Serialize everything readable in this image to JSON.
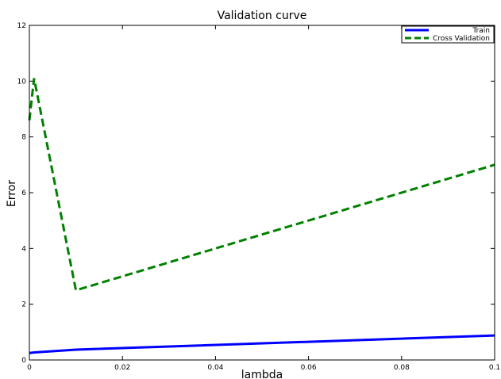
{
  "chart_data": {
    "type": "line",
    "title": "Validation curve",
    "xlabel": "lambda",
    "ylabel": "Error",
    "xlim": [
      0,
      0.1
    ],
    "ylim": [
      0,
      12
    ],
    "xticks": [
      {
        "value": 0,
        "label": "0"
      },
      {
        "value": 0.02,
        "label": "0.02"
      },
      {
        "value": 0.04,
        "label": "0.04"
      },
      {
        "value": 0.06,
        "label": "0.06"
      },
      {
        "value": 0.08,
        "label": "0.08"
      },
      {
        "value": 0.1,
        "label": "0.1"
      }
    ],
    "yticks": [
      {
        "value": 0,
        "label": "0"
      },
      {
        "value": 2,
        "label": "2"
      },
      {
        "value": 4,
        "label": "4"
      },
      {
        "value": 6,
        "label": "6"
      },
      {
        "value": 8,
        "label": "8"
      },
      {
        "value": 10,
        "label": "10"
      },
      {
        "value": 12,
        "label": "12"
      }
    ],
    "grid": false,
    "legend": "top-right",
    "series": [
      {
        "name": "Train",
        "color": "#0000ff",
        "style": "solid",
        "x": [
          0,
          0.001,
          0.01,
          0.1
        ],
        "y": [
          0.25,
          0.27,
          0.37,
          0.88
        ]
      },
      {
        "name": "Cross Validation",
        "color": "#008000",
        "style": "dashed",
        "x": [
          0,
          0.001,
          0.01,
          0.1
        ],
        "y": [
          8.6,
          10.1,
          2.5,
          7.0
        ]
      }
    ]
  }
}
